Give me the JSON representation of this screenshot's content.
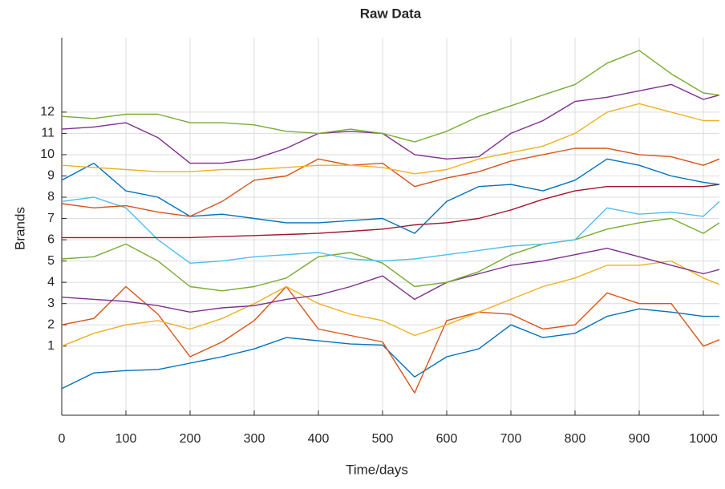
{
  "chart_data": {
    "type": "line",
    "title": "Raw Data",
    "x_label": "Time/days",
    "y_label": "Brands",
    "x": [
      0,
      50,
      100,
      150,
      200,
      250,
      300,
      350,
      400,
      450,
      500,
      550,
      600,
      650,
      700,
      750,
      800,
      850,
      900,
      950,
      1000,
      1025
    ],
    "xlim": [
      0,
      1025
    ],
    "xticks": [
      0,
      100,
      200,
      300,
      400,
      500,
      600,
      700,
      800,
      900,
      1000
    ],
    "ylim": [
      -2.25,
      15.5
    ],
    "yticks": [
      1,
      2,
      3,
      4,
      5,
      6,
      7,
      8,
      9,
      10,
      11,
      12
    ],
    "grid": true,
    "series": [
      {
        "color": "#0072BD",
        "values": [
          -1.0,
          -0.26,
          -0.15,
          -0.1,
          0.2,
          0.5,
          0.87,
          1.4,
          1.25,
          1.1,
          1.05,
          -0.45,
          0.5,
          0.87,
          2.0,
          1.4,
          1.6,
          2.4,
          2.75,
          2.6,
          2.4,
          2.4
        ]
      },
      {
        "color": "#D95319",
        "values": [
          2.0,
          2.3,
          3.8,
          2.5,
          0.5,
          1.2,
          2.2,
          3.8,
          1.8,
          1.5,
          1.2,
          -1.2,
          2.2,
          2.6,
          2.5,
          1.8,
          2.0,
          3.5,
          3.0,
          3.0,
          1.0,
          1.3
        ]
      },
      {
        "color": "#EDB120",
        "values": [
          1.0,
          1.6,
          2.0,
          2.2,
          1.8,
          2.3,
          3.0,
          3.8,
          3.0,
          2.5,
          2.2,
          1.5,
          2.0,
          2.6,
          3.2,
          3.8,
          4.2,
          4.8,
          4.8,
          5.0,
          4.2,
          3.9
        ]
      },
      {
        "color": "#7E2F8E",
        "values": [
          3.3,
          3.2,
          3.1,
          2.9,
          2.6,
          2.8,
          2.9,
          3.2,
          3.4,
          3.8,
          4.3,
          3.2,
          4.0,
          4.4,
          4.8,
          5.0,
          5.3,
          5.6,
          5.2,
          4.8,
          4.4,
          4.6
        ]
      },
      {
        "color": "#77AC30",
        "values": [
          5.1,
          5.2,
          5.8,
          5.0,
          3.8,
          3.6,
          3.8,
          4.2,
          5.2,
          5.4,
          4.9,
          3.8,
          4.0,
          4.5,
          5.3,
          5.8,
          6.0,
          6.5,
          6.8,
          7.0,
          6.3,
          6.8
        ]
      },
      {
        "color": "#4DBEEE",
        "values": [
          7.8,
          8.0,
          7.5,
          6.0,
          4.9,
          5.0,
          5.2,
          5.3,
          5.4,
          5.1,
          5.0,
          5.1,
          5.3,
          5.5,
          5.7,
          5.8,
          6.0,
          7.5,
          7.2,
          7.3,
          7.1,
          7.8
        ]
      },
      {
        "color": "#A2142F",
        "values": [
          6.1,
          6.1,
          6.1,
          6.1,
          6.1,
          6.15,
          6.2,
          6.25,
          6.3,
          6.4,
          6.5,
          6.7,
          6.8,
          7.0,
          7.4,
          7.9,
          8.3,
          8.5,
          8.5,
          8.5,
          8.5,
          8.6
        ]
      },
      {
        "color": "#0072BD",
        "values": [
          8.8,
          9.6,
          8.3,
          8.0,
          7.1,
          7.2,
          7.0,
          6.8,
          6.8,
          6.9,
          7.0,
          6.3,
          7.8,
          8.5,
          8.6,
          8.3,
          8.8,
          9.8,
          9.5,
          9.0,
          8.7,
          8.6
        ]
      },
      {
        "color": "#D95319",
        "values": [
          7.7,
          7.5,
          7.6,
          7.3,
          7.1,
          7.8,
          8.8,
          9.0,
          9.8,
          9.5,
          9.6,
          8.5,
          8.9,
          9.2,
          9.7,
          10.0,
          10.3,
          10.3,
          10.0,
          9.9,
          9.5,
          9.8
        ]
      },
      {
        "color": "#EDB120",
        "values": [
          9.5,
          9.4,
          9.3,
          9.2,
          9.2,
          9.3,
          9.3,
          9.4,
          9.5,
          9.5,
          9.4,
          9.1,
          9.3,
          9.8,
          10.1,
          10.4,
          11.0,
          12.0,
          12.4,
          12.0,
          11.6,
          11.6
        ]
      },
      {
        "color": "#7E2F8E",
        "values": [
          11.2,
          11.3,
          11.5,
          10.8,
          9.6,
          9.6,
          9.8,
          10.3,
          11.0,
          11.1,
          11.0,
          10.0,
          9.8,
          9.9,
          11.0,
          11.6,
          12.5,
          12.7,
          13.0,
          13.3,
          12.6,
          12.8
        ]
      },
      {
        "color": "#77AC30",
        "values": [
          11.8,
          11.7,
          11.9,
          11.9,
          11.5,
          11.5,
          11.4,
          11.1,
          11.0,
          11.2,
          11.0,
          10.6,
          11.1,
          11.8,
          12.3,
          12.8,
          13.3,
          14.3,
          14.9,
          13.8,
          12.9,
          12.8
        ]
      }
    ]
  }
}
